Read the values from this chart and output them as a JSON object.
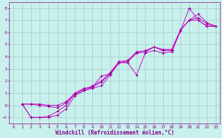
{
  "title": "",
  "xlabel": "Windchill (Refroidissement éolien,°C)",
  "ylabel": "",
  "bg_color": "#c8f0ec",
  "grid_color": "#a8c8c4",
  "line_color": "#cc00cc",
  "marker_color": "#880088",
  "spine_color": "#880088",
  "xlim": [
    -0.5,
    23.5
  ],
  "ylim": [
    -1.5,
    8.5
  ],
  "xticks": [
    0,
    1,
    2,
    3,
    4,
    5,
    6,
    7,
    8,
    9,
    10,
    11,
    12,
    13,
    14,
    15,
    16,
    17,
    18,
    19,
    20,
    21,
    22,
    23
  ],
  "yticks": [
    -1,
    0,
    1,
    2,
    3,
    4,
    5,
    6,
    7,
    8
  ],
  "series": [
    {
      "x": [
        1,
        2,
        3,
        4,
        5,
        6,
        7,
        8,
        9,
        10,
        11,
        12,
        13,
        14,
        15,
        16,
        17,
        18,
        19,
        20,
        21,
        22,
        23
      ],
      "y": [
        0.1,
        -1.0,
        -1.0,
        -1.0,
        -0.8,
        -0.3,
        0.8,
        1.2,
        1.4,
        1.6,
        2.5,
        3.5,
        3.5,
        2.5,
        4.3,
        4.5,
        4.3,
        4.4,
        6.1,
        8.0,
        7.0,
        6.5,
        6.5
      ]
    },
    {
      "x": [
        1,
        2,
        3,
        4,
        5,
        6,
        7,
        8,
        9,
        10,
        11,
        12,
        13,
        14,
        15,
        16,
        17,
        18,
        19,
        20,
        21,
        22,
        23
      ],
      "y": [
        0.1,
        -1.0,
        -1.0,
        -0.9,
        -0.5,
        0.0,
        1.0,
        1.4,
        1.5,
        2.4,
        2.6,
        3.5,
        3.6,
        4.3,
        4.4,
        4.8,
        4.5,
        4.5,
        6.2,
        7.0,
        7.0,
        6.5,
        6.5
      ]
    },
    {
      "x": [
        1,
        2,
        3,
        4,
        5,
        6,
        7,
        8,
        9,
        10,
        11,
        12,
        13,
        14,
        15,
        16,
        17,
        18,
        19,
        20,
        21,
        22,
        23
      ],
      "y": [
        0.1,
        0.1,
        0.0,
        -0.1,
        -0.2,
        0.2,
        0.9,
        1.2,
        1.5,
        1.9,
        2.6,
        3.5,
        3.6,
        4.3,
        4.4,
        4.8,
        4.5,
        4.5,
        6.2,
        7.0,
        7.2,
        6.7,
        6.5
      ]
    },
    {
      "x": [
        1,
        2,
        3,
        4,
        5,
        6,
        7,
        8,
        9,
        10,
        11,
        12,
        13,
        14,
        15,
        16,
        17,
        18,
        19,
        20,
        21,
        22,
        23
      ],
      "y": [
        0.1,
        0.1,
        0.1,
        0.0,
        0.0,
        0.3,
        1.0,
        1.3,
        1.6,
        2.0,
        2.7,
        3.6,
        3.7,
        4.4,
        4.5,
        4.8,
        4.6,
        4.6,
        6.2,
        7.0,
        7.5,
        6.8,
        6.5
      ]
    }
  ],
  "xlabel_fontsize": 5.5,
  "tick_fontsize": 4.5,
  "linewidth": 0.7,
  "markersize": 2.5
}
